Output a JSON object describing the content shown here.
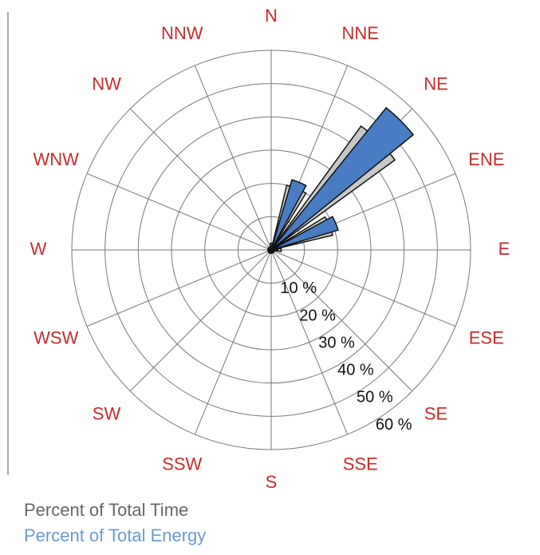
{
  "chart_data": {
    "type": "windrose",
    "categories": [
      "N",
      "NNE",
      "NE",
      "ENE",
      "E",
      "ESE",
      "SE",
      "SSE",
      "S",
      "SSW",
      "SW",
      "WSW",
      "W",
      "WNW",
      "NW",
      "NNW"
    ],
    "series": [
      {
        "name": "Percent of Total Time",
        "color": "#c8c8c8",
        "values": [
          2,
          20,
          46,
          19,
          3,
          1,
          1,
          1,
          1,
          1,
          1,
          1,
          1,
          1,
          1,
          1
        ]
      },
      {
        "name": "Percent of Total Energy",
        "color": "#4a7cc4",
        "values": [
          1,
          22,
          55,
          21,
          2,
          0.5,
          0.5,
          0.5,
          0.5,
          0.5,
          0.5,
          0.5,
          0.5,
          0.5,
          0.5,
          0.5
        ]
      }
    ],
    "rlim": [
      0,
      60
    ],
    "rticks": [
      {
        "value": 10,
        "label": "10 %"
      },
      {
        "value": 20,
        "label": "20 %"
      },
      {
        "value": 30,
        "label": "30 %"
      },
      {
        "value": 40,
        "label": "40 %"
      },
      {
        "value": 50,
        "label": "50 %"
      },
      {
        "value": 60,
        "label": "60 %"
      }
    ],
    "label_color": "#cc2a2a"
  }
}
